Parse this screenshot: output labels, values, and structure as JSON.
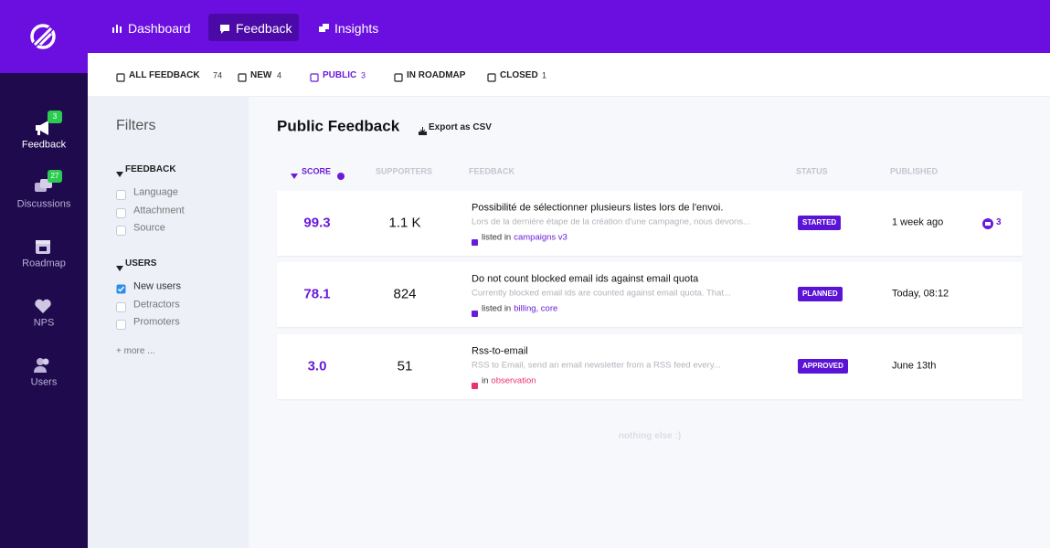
{
  "sidebar": {
    "items": [
      {
        "label": "Feedback",
        "badge": "3"
      },
      {
        "label": "Discussions",
        "badge": "27"
      },
      {
        "label": "Roadmap"
      },
      {
        "label": "NPS"
      },
      {
        "label": "Users"
      }
    ]
  },
  "nav": {
    "items": [
      "Dashboard",
      "Feedback",
      "Insights"
    ],
    "active": 1
  },
  "tabs": {
    "items": [
      {
        "label": "ALL FEEDBACK",
        "count": "74"
      },
      {
        "label": "NEW",
        "count": "4"
      },
      {
        "label": "PUBLIC",
        "count": "3"
      },
      {
        "label": "IN ROADMAP"
      },
      {
        "label": "CLOSED",
        "count": "1"
      }
    ],
    "active": 2
  },
  "filters": {
    "title": "Filters",
    "groups": [
      {
        "title": "FEEDBACK",
        "options": [
          {
            "label": "Language",
            "checked": false
          },
          {
            "label": "Attachment",
            "checked": false
          },
          {
            "label": "Source",
            "checked": false
          }
        ]
      },
      {
        "title": "USERS",
        "options": [
          {
            "label": "New users",
            "checked": true
          },
          {
            "label": "Detractors",
            "checked": false
          },
          {
            "label": "Promoters",
            "checked": false
          }
        ]
      }
    ],
    "more": "+ more ..."
  },
  "main": {
    "title": "Public Feedback",
    "export": "Export as CSV",
    "columns": [
      "SCORE",
      "SUPPORTERS",
      "FEEDBACK",
      "STATUS",
      "PUBLISHED"
    ],
    "rows": [
      {
        "score": "99.3",
        "supporters": "1.1 K",
        "title": "Possibilité de sélectionner plusieurs listes lors de l'envoi.",
        "description": "Lors de la dernière étape de la création d'une campagne, nous devons...",
        "list_prefix": "listed in",
        "lists": "campaigns v3",
        "list_color": "#6a1bd8",
        "status": "STARTED",
        "published": "1 week ago",
        "comments": "3"
      },
      {
        "score": "78.1",
        "supporters": "824",
        "title": "Do not count blocked email ids against email quota",
        "description": "Currently blocked email ids are counted against email quota. That...",
        "list_prefix": "listed in",
        "lists": "billing, core",
        "list_color": "#6a1bd8",
        "status": "PLANNED",
        "published": "Today, 08:12"
      },
      {
        "score": "3.0",
        "supporters": "51",
        "title": "Rss-to-email",
        "description": "RSS to Email, send an email newsletter from a RSS feed every...",
        "list_prefix": "in",
        "lists": "observation",
        "list_color": "#e8336d",
        "status": "APPROVED",
        "published": "June 13th"
      }
    ],
    "footer": "nothing else :)"
  }
}
